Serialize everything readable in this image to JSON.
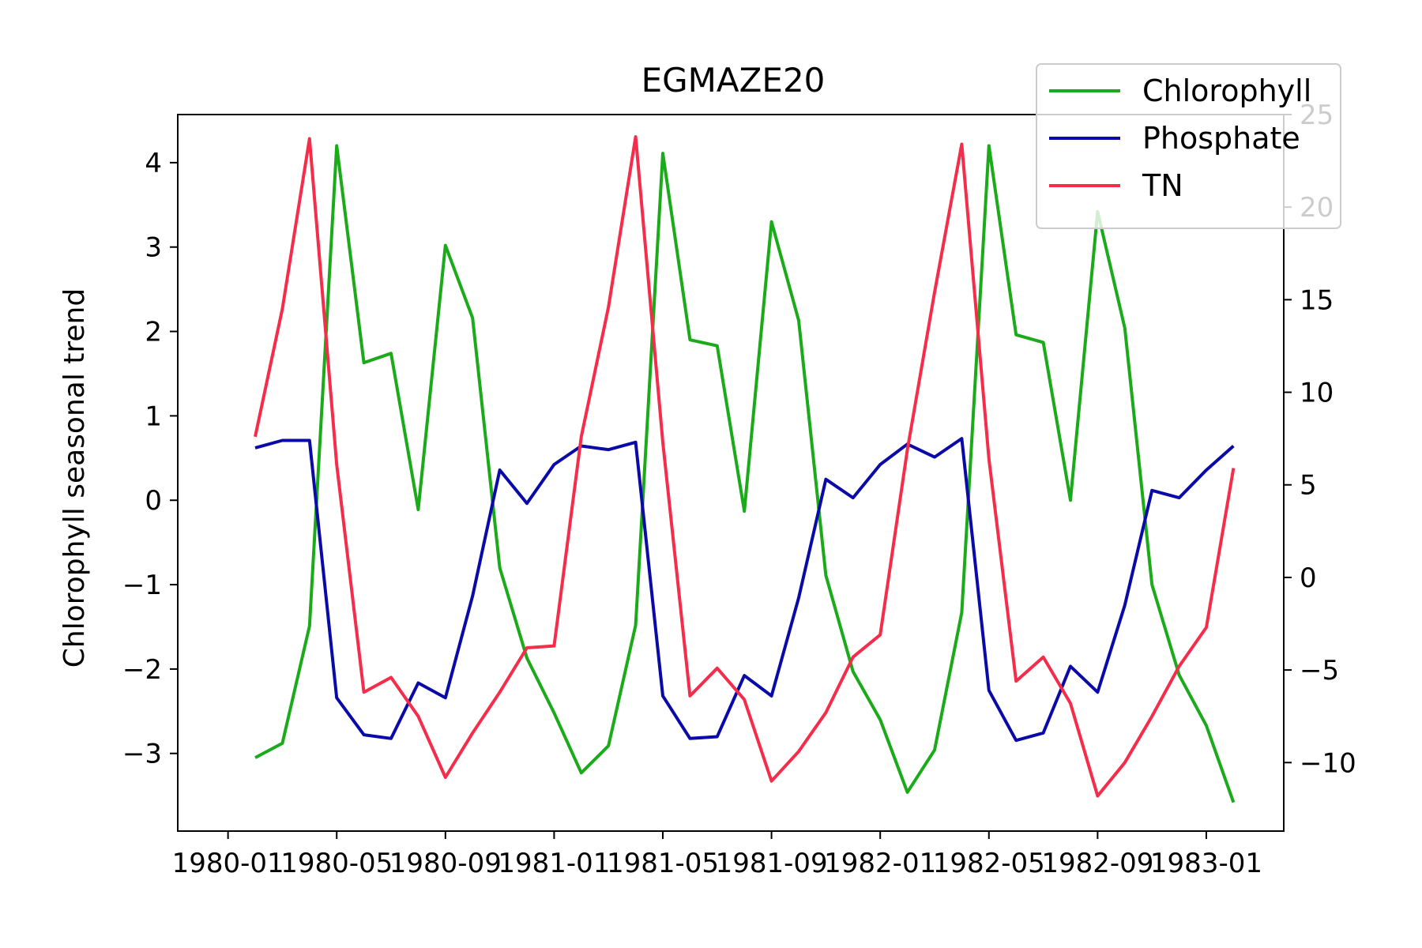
{
  "chart_data": {
    "type": "line",
    "title": "EGMAZE20",
    "ylabel": "Chlorophyll seasonal trend",
    "xlabel": "",
    "x_tick_labels": [
      "1980-01",
      "1980-05",
      "1980-09",
      "1981-01",
      "1981-05",
      "1981-09",
      "1982-01",
      "1982-05",
      "1982-09",
      "1983-01"
    ],
    "y_tick_labels": [
      "4",
      "3",
      "2",
      "1",
      "0",
      "−1",
      "−2",
      "−3"
    ],
    "y2_tick_labels": [
      "25",
      "20",
      "15",
      "10",
      "5",
      "0",
      "−5",
      "−10"
    ],
    "ylim": [
      -3.92,
      4.57
    ],
    "y2lim": [
      -13.7,
      25.0
    ],
    "grid": false,
    "legend_position": "top-right",
    "x": [
      "1980-02",
      "1980-03",
      "1980-04",
      "1980-05",
      "1980-06",
      "1980-07",
      "1980-08",
      "1980-09",
      "1980-10",
      "1980-11",
      "1980-12",
      "1981-01",
      "1981-02",
      "1981-03",
      "1981-04",
      "1981-05",
      "1981-06",
      "1981-07",
      "1981-08",
      "1981-09",
      "1981-10",
      "1981-11",
      "1981-12",
      "1982-01",
      "1982-02",
      "1982-03",
      "1982-04",
      "1982-05",
      "1982-06",
      "1982-07",
      "1982-08",
      "1982-09",
      "1982-10",
      "1982-11",
      "1982-12",
      "1983-01",
      "1983-02"
    ],
    "series": [
      {
        "name": "Chlorophyll",
        "axis": "left",
        "color": "#1aaa1a",
        "values": [
          -3.05,
          -2.88,
          -1.49,
          4.2,
          1.63,
          1.74,
          -0.11,
          3.02,
          2.16,
          -0.8,
          -1.87,
          -2.52,
          -3.23,
          -2.91,
          -1.48,
          4.11,
          1.9,
          1.83,
          -0.13,
          3.3,
          2.13,
          -0.89,
          -2.03,
          -2.6,
          -3.46,
          -2.96,
          -1.33,
          4.2,
          1.96,
          1.87,
          0.0,
          3.42,
          2.04,
          -1.0,
          -2.07,
          -2.67,
          -3.58
        ]
      },
      {
        "name": "Phosphate",
        "axis": "right",
        "color": "#0a0aa8",
        "values": [
          7.0,
          7.4,
          7.4,
          -6.5,
          -8.5,
          -8.7,
          -5.7,
          -6.5,
          -1.0,
          5.8,
          4.0,
          6.1,
          7.1,
          6.9,
          7.3,
          -6.4,
          -8.7,
          -8.6,
          -5.3,
          -6.4,
          -1.1,
          5.3,
          4.3,
          6.1,
          7.2,
          6.5,
          7.5,
          -6.1,
          -8.8,
          -8.4,
          -4.8,
          -6.2,
          -1.5,
          4.7,
          4.3,
          5.8,
          7.1
        ]
      },
      {
        "name": "TN",
        "axis": "right",
        "color": "#f52c4a",
        "values": [
          7.6,
          14.5,
          23.7,
          6.1,
          -6.2,
          -5.4,
          -7.5,
          -10.8,
          -8.4,
          -6.2,
          -3.8,
          -3.7,
          7.6,
          14.6,
          23.8,
          7.3,
          -6.4,
          -4.9,
          -6.6,
          -11.0,
          -9.4,
          -7.3,
          -4.3,
          -3.1,
          6.9,
          15.4,
          23.4,
          6.4,
          -5.6,
          -4.3,
          -6.8,
          -11.8,
          -10.0,
          -7.5,
          -4.8,
          -2.7,
          5.9
        ]
      }
    ]
  }
}
